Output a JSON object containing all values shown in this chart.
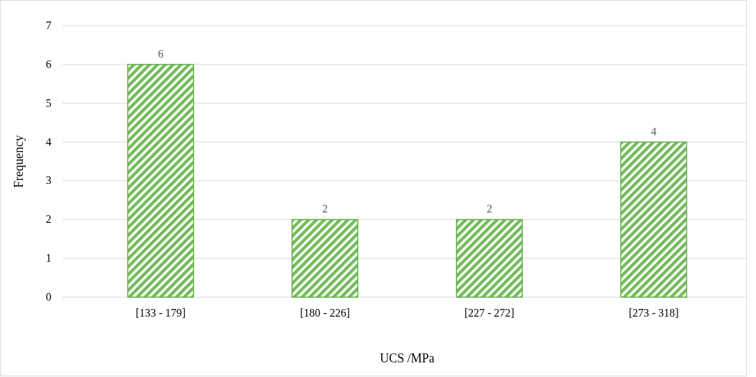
{
  "chart_data": {
    "type": "bar",
    "xlabel": "UCS /MPa",
    "ylabel": "Frequency",
    "categories": [
      "[133 - 179]",
      "[180 - 226]",
      "[227 - 272]",
      "[273 - 318]"
    ],
    "values": [
      6,
      2,
      2,
      4
    ],
    "color": "#5cb040",
    "ylim": [
      0,
      7
    ],
    "yticks": [
      0,
      1,
      2,
      3,
      4,
      5,
      6,
      7
    ],
    "grid": "y",
    "data_labels": true
  }
}
